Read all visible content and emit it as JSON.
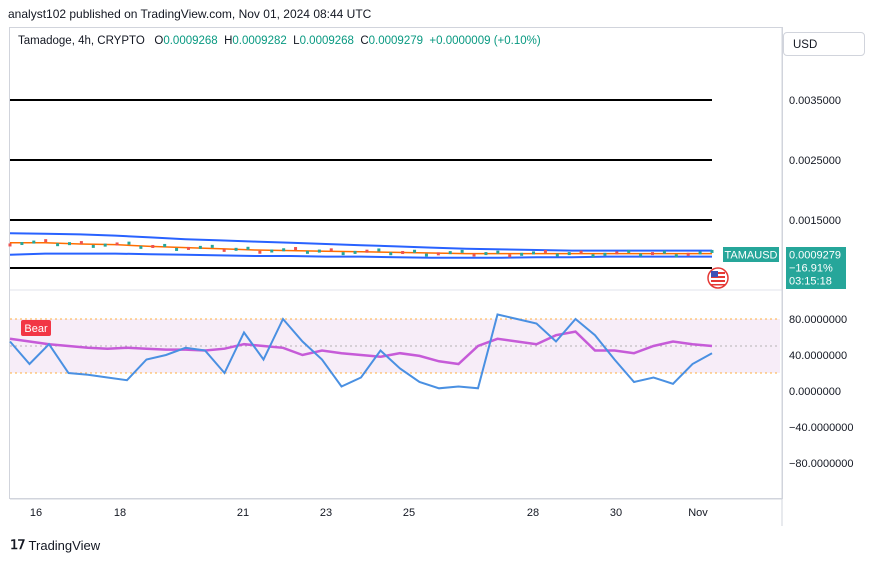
{
  "header": "analyst102 published on TradingView.com, Nov 01, 2024 08:44 UTC",
  "symbol": {
    "name": "Tamadoge, 4h, CRYPTO",
    "o_label": "O",
    "o": "0.0009268",
    "h_label": "H",
    "h": "0.0009282",
    "l_label": "L",
    "l": "0.0009268",
    "c_label": "C",
    "c": "0.0009279",
    "change": "+0.0000009 (+0.10%)"
  },
  "currency_button": "USD",
  "badge": {
    "ticker": "TAMAUSD",
    "price": "0.0009279",
    "change_pct": "−16.91%",
    "countdown": "03:15:18",
    "color": "#26a69a"
  },
  "bear_label": "Bear",
  "footer": {
    "brand": "TradingView",
    "logo": "tradingview-logo-icon"
  },
  "chart_data": [
    {
      "type": "line",
      "name": "price-pane",
      "price_ticks": [
        "0.0035000",
        "0.0025000",
        "0.0015000"
      ],
      "price_tick_values": [
        0.0035,
        0.0025,
        0.0015
      ],
      "horizontal_levels": [
        0.0035,
        0.0025,
        0.0015,
        0.0007
      ],
      "level_color": "#000000",
      "bands": {
        "upper": [
          0.00128,
          0.00127,
          0.00126,
          0.00124,
          0.00121,
          0.00118,
          0.00116,
          0.00114,
          0.00112,
          0.0011,
          0.00108,
          0.00106,
          0.00104,
          0.00102,
          0.00101,
          0.001,
          0.00099,
          0.00099,
          0.00099,
          0.00099,
          0.00099
        ],
        "middle": [
          0.00112,
          0.00112,
          0.0011,
          0.00109,
          0.00106,
          0.00104,
          0.00102,
          0.001,
          0.00099,
          0.00098,
          0.00097,
          0.00096,
          0.00095,
          0.00094,
          0.00094,
          0.00094,
          0.00094,
          0.00094,
          0.00094,
          0.00094,
          0.00094
        ],
        "lower": [
          0.00092,
          0.00094,
          0.00094,
          0.00094,
          0.00093,
          0.00092,
          0.00091,
          0.0009,
          0.0009,
          0.00089,
          0.00089,
          0.00088,
          0.00087,
          0.00087,
          0.00087,
          0.00088,
          0.00088,
          0.00089,
          0.00089,
          0.00089,
          0.00089
        ],
        "upper_color": "#2962ff",
        "middle_color": "#ff6d00",
        "lower_color": "#2962ff"
      },
      "last_price": 0.0009279
    },
    {
      "type": "line",
      "name": "stochastic-rsi",
      "y_ticks": [
        "80.0000000",
        "40.0000000",
        "0.0000000",
        "−40.0000000",
        "−80.0000000"
      ],
      "y_tick_values": [
        80,
        40,
        0,
        -40,
        -80
      ],
      "band_upper": 80,
      "band_lower": 20,
      "midline": 50,
      "k_values": [
        55,
        30,
        52,
        20,
        18,
        15,
        12,
        35,
        40,
        48,
        45,
        20,
        65,
        35,
        80,
        55,
        35,
        5,
        15,
        45,
        25,
        10,
        3,
        5,
        3,
        85,
        80,
        75,
        55,
        80,
        62,
        35,
        10,
        15,
        8,
        30,
        42
      ],
      "d_values": [
        58,
        55,
        52,
        50,
        48,
        47,
        48,
        47,
        46,
        46,
        45,
        47,
        52,
        50,
        48,
        40,
        45,
        42,
        40,
        38,
        42,
        39,
        33,
        30,
        50,
        58,
        55,
        52,
        62,
        66,
        45,
        45,
        42,
        50,
        55,
        52,
        50
      ],
      "k_color": "#4a90e2",
      "d_color": "#c65bd8"
    }
  ],
  "x_ticks": [
    "16",
    "18",
    "21",
    "23",
    "25",
    "28",
    "30",
    "Nov"
  ]
}
